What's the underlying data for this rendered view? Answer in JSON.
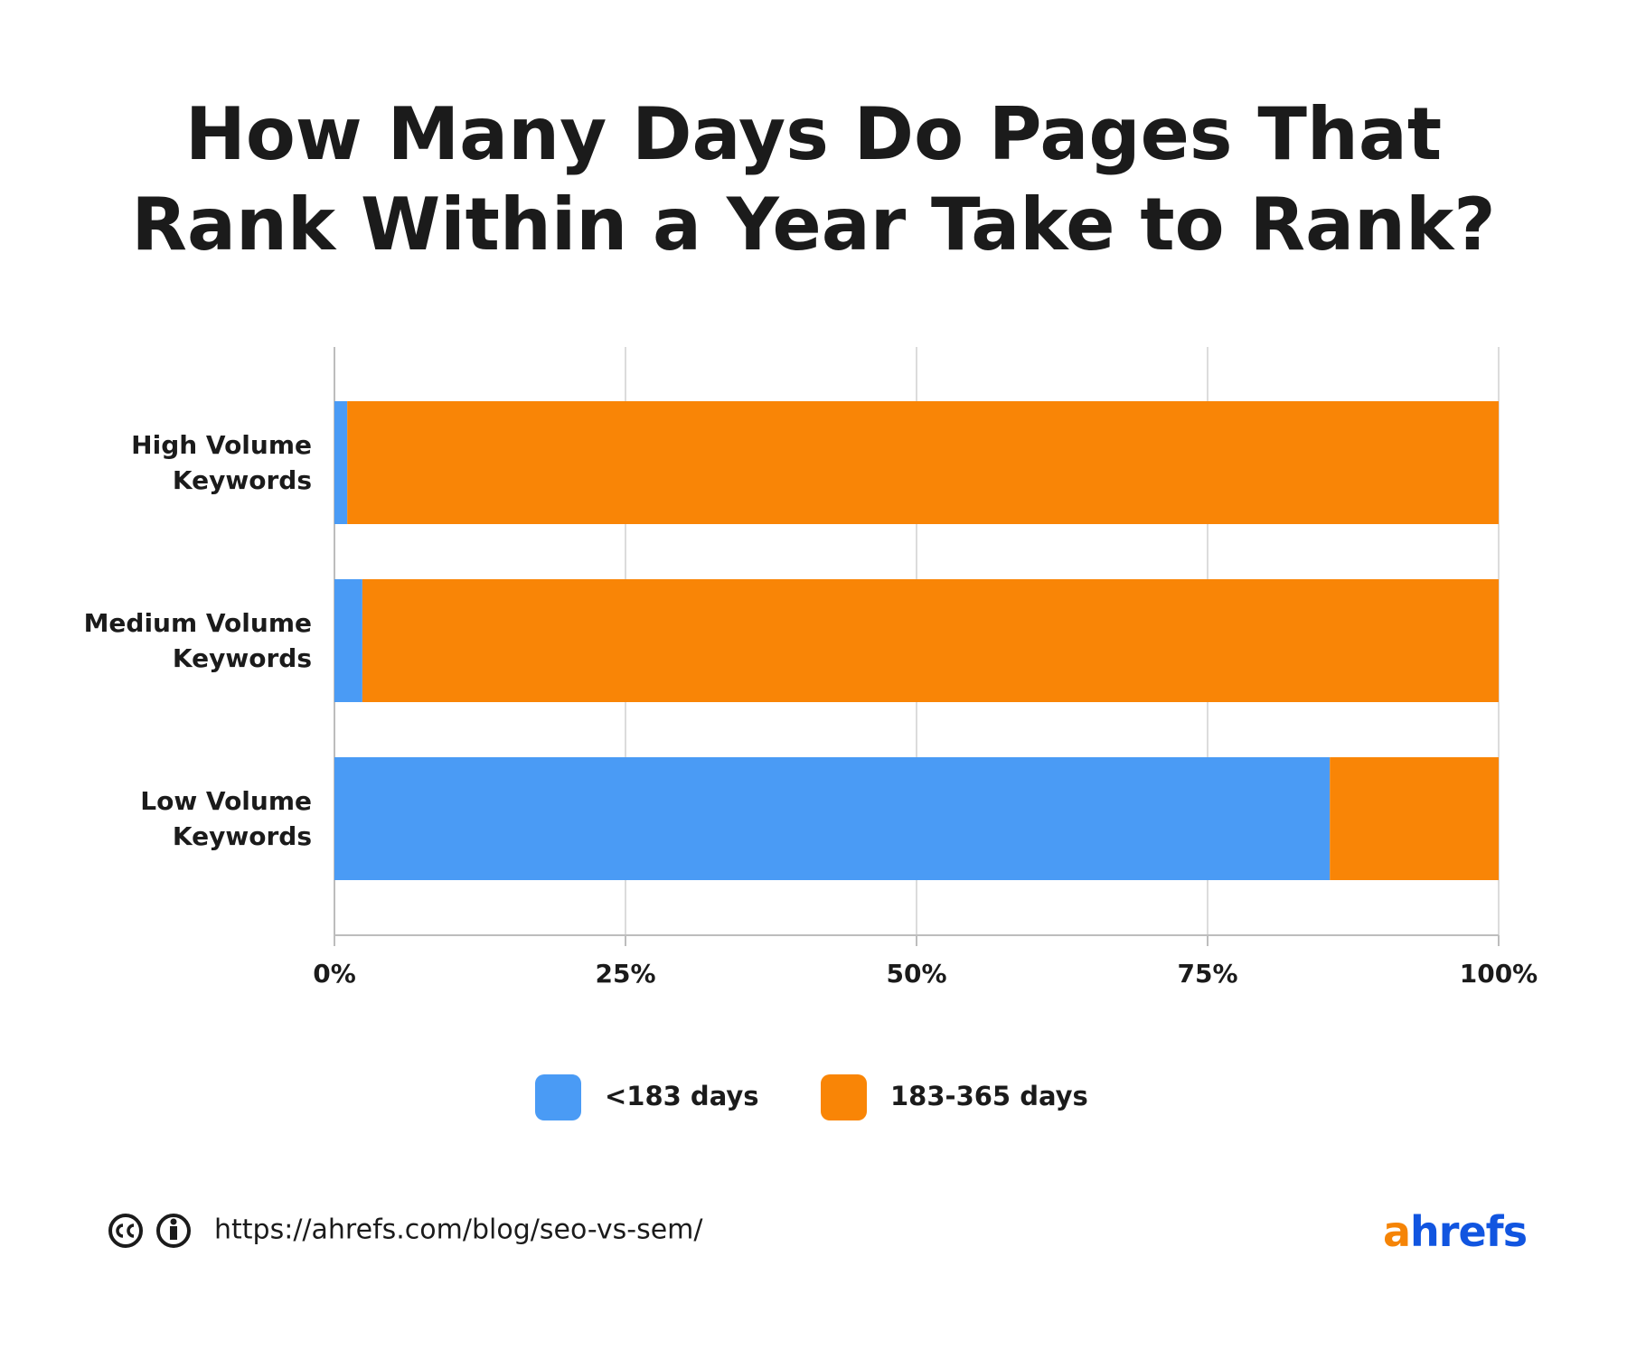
{
  "chart_data": {
    "type": "stacked-barh",
    "title": "How Many Days Do Pages That Rank Within a Year Take to Rank?",
    "categories": [
      "High Volume Keywords",
      "Medium Volume Keywords",
      "Low Volume Keywords"
    ],
    "series": [
      {
        "name": "<183 days",
        "color": "#4a9bf5",
        "values": [
          1.1,
          2.4,
          85.5
        ]
      },
      {
        "name": "183-365 days",
        "color": "#f98506",
        "values": [
          98.9,
          97.6,
          14.5
        ]
      }
    ],
    "xlim": [
      0,
      100
    ],
    "xticks": [
      {
        "value": 0,
        "label": "0%"
      },
      {
        "value": 25,
        "label": "25%"
      },
      {
        "value": 50,
        "label": "50%"
      },
      {
        "value": 75,
        "label": "75%"
      },
      {
        "value": 100,
        "label": "100%"
      }
    ],
    "grid": true,
    "legend": "bottom"
  },
  "footer": {
    "url": "https://ahrefs.com/blog/seo-vs-sem/",
    "logo": "ahrefs"
  }
}
